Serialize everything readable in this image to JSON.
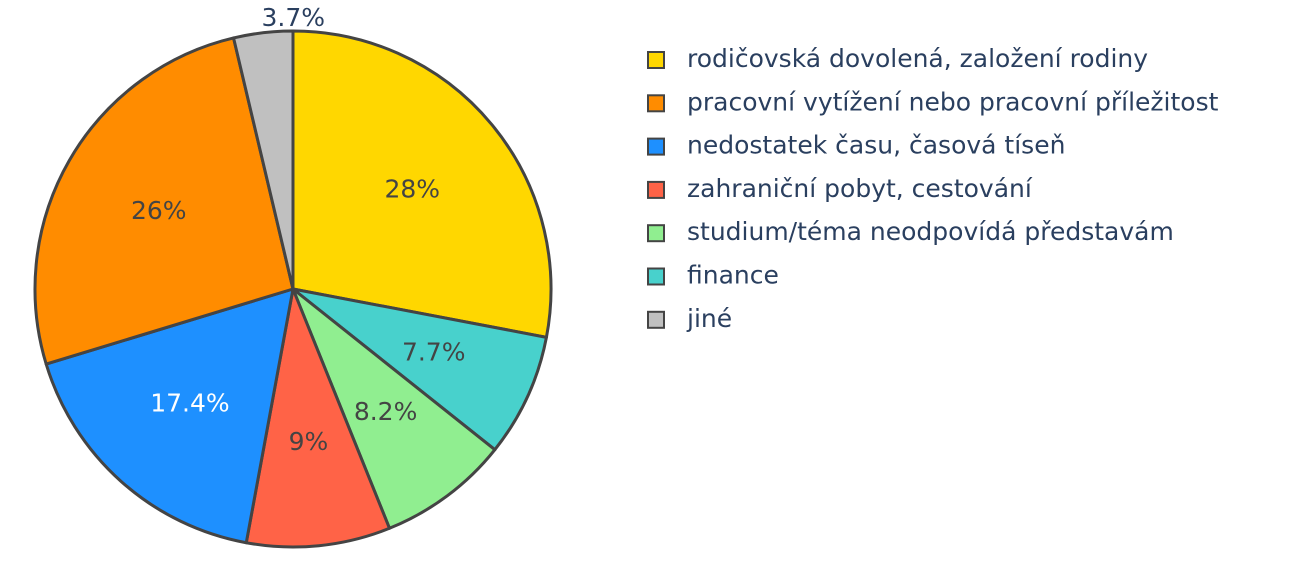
{
  "chart_data": {
    "type": "pie",
    "direction": "clockwise",
    "start": "top",
    "legend_position": "right",
    "labels": [
      "rodičovská dovolená, založení rodiny",
      "pracovní vytížení nebo pracovní příležitost",
      "nedostatek času, časová tíseň",
      "zahraniční pobyt, cestování",
      "studium/téma neodpovídá představám",
      "finance",
      "jiné"
    ],
    "values": [
      28,
      26,
      17.4,
      9,
      8.2,
      7.7,
      3.7
    ],
    "slice_labels": [
      "28%",
      "26%",
      "17.4%",
      "9%",
      "8.2%",
      "7.7%",
      "3.7%"
    ],
    "slice_order": [
      0,
      5,
      4,
      3,
      2,
      1,
      6
    ],
    "colors": [
      "#ffd700",
      "#ff8c00",
      "#1e90ff",
      "#ff6347",
      "#90ee90",
      "#48d1cc",
      "#c0c0c0"
    ],
    "label_colors": [
      "#444444",
      "#444444",
      "#ffffff",
      "#444444",
      "#444444",
      "#444444",
      "#2a3f5f"
    ],
    "outside_labels": [
      6
    ]
  }
}
